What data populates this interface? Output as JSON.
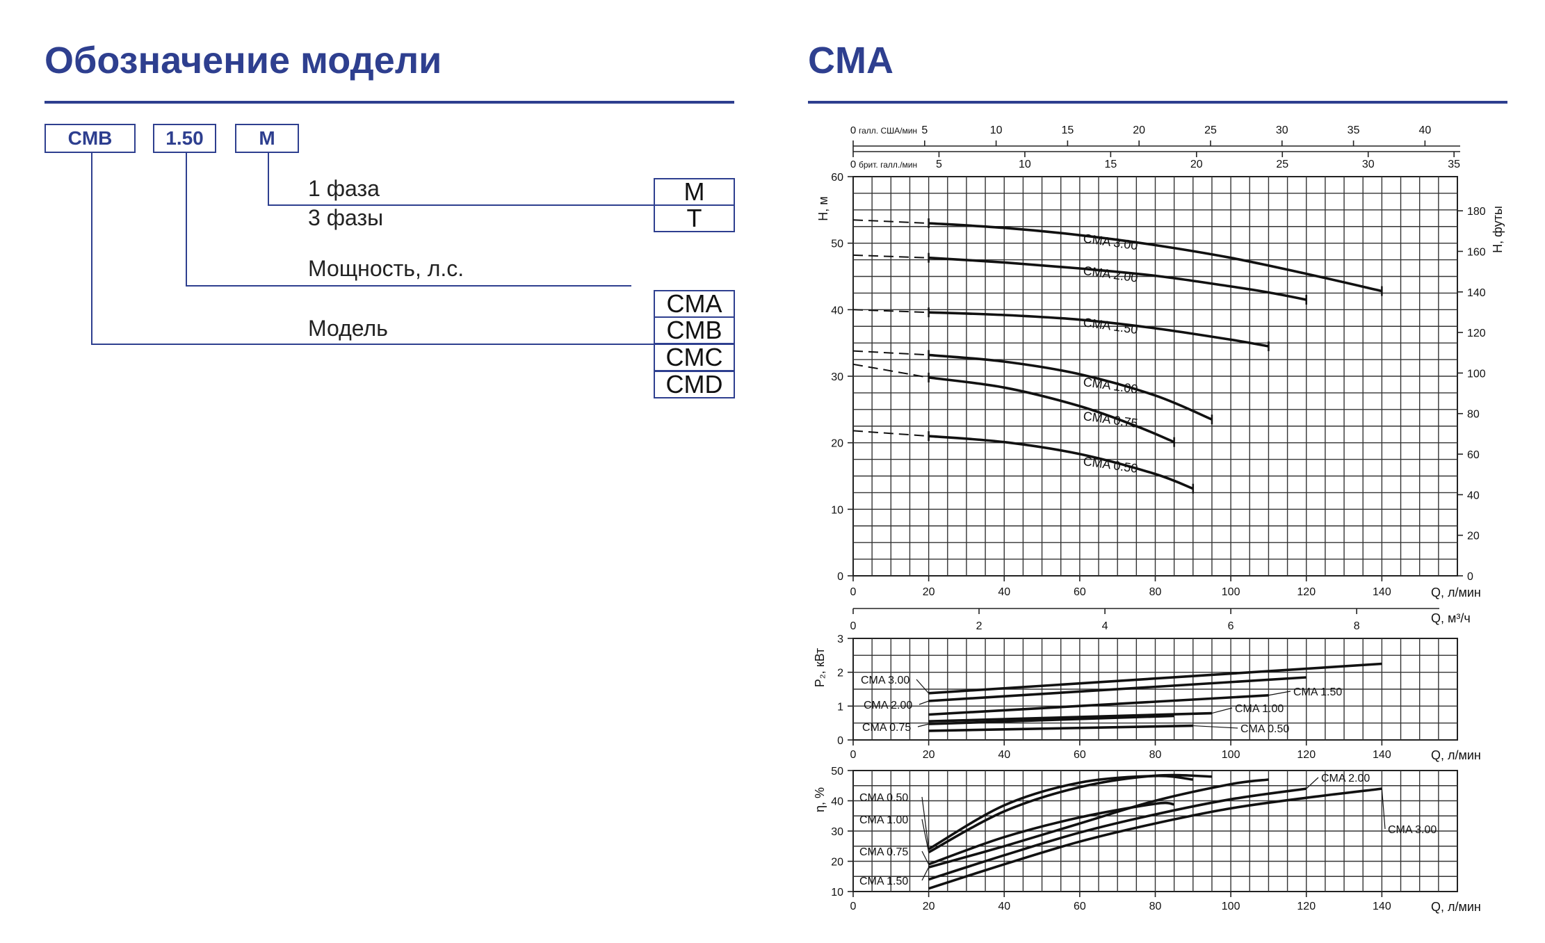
{
  "left": {
    "title": "Обозначение модели",
    "code": {
      "series": "CMB",
      "power": "1.50",
      "phase": "M"
    },
    "labels": {
      "phase1": "1 фаза",
      "phase3": "3 фазы",
      "power": "Мощность, л.с.",
      "model": "Модель"
    },
    "phase_options": [
      "M",
      "T"
    ],
    "model_options": [
      "CMA",
      "CMB",
      "CMC",
      "CMD"
    ]
  },
  "right": {
    "title": "CMA"
  },
  "chart_data": [
    {
      "type": "line",
      "id": "head",
      "title": "CMA",
      "xlabel": "Q, л/мин",
      "ylabel": "H, м",
      "ylabel_right": "H, футы",
      "xlim": [
        0,
        160
      ],
      "ylim": [
        0,
        60
      ],
      "xticks": [
        "0",
        "20",
        "40",
        "60",
        "80",
        "100",
        "120",
        "140"
      ],
      "yticks": [
        "0",
        "10",
        "20",
        "30",
        "40",
        "50",
        "60"
      ],
      "right_ticks": [
        "0",
        "20",
        "40",
        "60",
        "80",
        "100",
        "120",
        "140",
        "160",
        "180"
      ],
      "top_axis_us": {
        "label": "галл. США/мин",
        "zero": "0",
        "ticks": [
          "5",
          "10",
          "15",
          "20",
          "25",
          "30",
          "35",
          "40"
        ]
      },
      "top_axis_uk": {
        "label": "брит. галл./мин",
        "zero": "0",
        "ticks": [
          "5",
          "10",
          "15",
          "20",
          "25",
          "30",
          "35"
        ]
      },
      "bottom_axis_m3": {
        "label": "Q, м³/ч",
        "ticks": [
          "0",
          "2",
          "4",
          "6",
          "8"
        ]
      },
      "series": [
        {
          "name": "CMA 3.00",
          "dashed": [
            [
              0,
              53.5
            ],
            [
              20,
              53
            ]
          ],
          "x": [
            20,
            40,
            60,
            80,
            100,
            120,
            140
          ],
          "y": [
            53,
            52.3,
            51.2,
            49.7,
            47.8,
            45.4,
            42.8
          ]
        },
        {
          "name": "CMA 2.00",
          "dashed": [
            [
              0,
              48.2
            ],
            [
              20,
              47.8
            ]
          ],
          "x": [
            20,
            40,
            60,
            80,
            100,
            110,
            120
          ],
          "y": [
            47.8,
            47.1,
            46.2,
            45.1,
            43.5,
            42.6,
            41.5
          ]
        },
        {
          "name": "CMA 1.50",
          "dashed": [
            [
              0,
              40
            ],
            [
              20,
              39.6
            ]
          ],
          "x": [
            20,
            40,
            60,
            80,
            100,
            110
          ],
          "y": [
            39.6,
            39.2,
            38.5,
            37.2,
            35.5,
            34.5
          ]
        },
        {
          "name": "CMA 1.00",
          "dashed": [
            [
              0,
              33.8
            ],
            [
              20,
              33.2
            ]
          ],
          "x": [
            20,
            40,
            60,
            80,
            95
          ],
          "y": [
            33.2,
            32.2,
            30.3,
            27.1,
            23.5
          ]
        },
        {
          "name": "CMA 0.75",
          "dashed": [
            [
              0,
              31.8
            ],
            [
              20,
              29.8
            ]
          ],
          "x": [
            20,
            40,
            60,
            75,
            85
          ],
          "y": [
            29.8,
            28.3,
            25.5,
            22.5,
            20.1
          ]
        },
        {
          "name": "CMA 0.50",
          "dashed": [
            [
              0,
              21.8
            ],
            [
              20,
              21
            ]
          ],
          "x": [
            20,
            40,
            60,
            80,
            90
          ],
          "y": [
            21,
            20.1,
            18.3,
            15.3,
            13.1
          ]
        }
      ]
    },
    {
      "type": "line",
      "id": "power",
      "xlabel": "Q, л/мин",
      "ylabel": "P₂, кВт",
      "xlim": [
        0,
        160
      ],
      "ylim": [
        0,
        3
      ],
      "xticks": [
        "0",
        "20",
        "40",
        "60",
        "80",
        "100",
        "120",
        "140"
      ],
      "yticks": [
        "0",
        "1",
        "2",
        "3"
      ],
      "series": [
        {
          "name": "CMA 3.00",
          "x": [
            20,
            140
          ],
          "y": [
            1.38,
            2.25
          ]
        },
        {
          "name": "CMA 2.00",
          "x": [
            20,
            120
          ],
          "y": [
            1.15,
            1.85
          ]
        },
        {
          "name": "CMA 1.50",
          "x": [
            20,
            110
          ],
          "y": [
            0.75,
            1.32
          ]
        },
        {
          "name": "CMA 1.00",
          "x": [
            20,
            95
          ],
          "y": [
            0.55,
            0.79
          ]
        },
        {
          "name": "CMA 0.75",
          "x": [
            20,
            85
          ],
          "y": [
            0.47,
            0.71
          ]
        },
        {
          "name": "CMA 0.50",
          "x": [
            20,
            90
          ],
          "y": [
            0.27,
            0.42
          ]
        }
      ]
    },
    {
      "type": "line",
      "id": "efficiency",
      "xlabel": "Q, л/мин",
      "ylabel": "η, %",
      "xlim": [
        0,
        160
      ],
      "ylim": [
        10,
        50
      ],
      "xticks": [
        "0",
        "20",
        "40",
        "60",
        "80",
        "100",
        "120",
        "140"
      ],
      "yticks": [
        "10",
        "20",
        "30",
        "40",
        "50"
      ],
      "series": [
        {
          "name": "CMA 0.50",
          "x": [
            20,
            40,
            60,
            80,
            90
          ],
          "y": [
            24,
            38.5,
            46,
            48.2,
            47
          ]
        },
        {
          "name": "CMA 1.00",
          "x": [
            20,
            40,
            60,
            80,
            95
          ],
          "y": [
            23,
            36.5,
            44.5,
            48.3,
            48
          ]
        },
        {
          "name": "CMA 0.75",
          "x": [
            20,
            40,
            60,
            80,
            85
          ],
          "y": [
            19,
            28,
            34.5,
            39,
            38.8
          ]
        },
        {
          "name": "CMA 1.50",
          "x": [
            20,
            40,
            60,
            80,
            100,
            110
          ],
          "y": [
            18,
            25,
            32.5,
            40,
            45.5,
            47
          ]
        },
        {
          "name": "CMA 2.00",
          "x": [
            20,
            40,
            60,
            80,
            100,
            120
          ],
          "y": [
            14,
            22,
            29.5,
            35.5,
            40.5,
            44
          ]
        },
        {
          "name": "CMA 3.00",
          "x": [
            20,
            40,
            60,
            80,
            100,
            120,
            140
          ],
          "y": [
            11,
            19,
            26.5,
            32.5,
            37.5,
            41,
            44
          ]
        }
      ]
    }
  ]
}
